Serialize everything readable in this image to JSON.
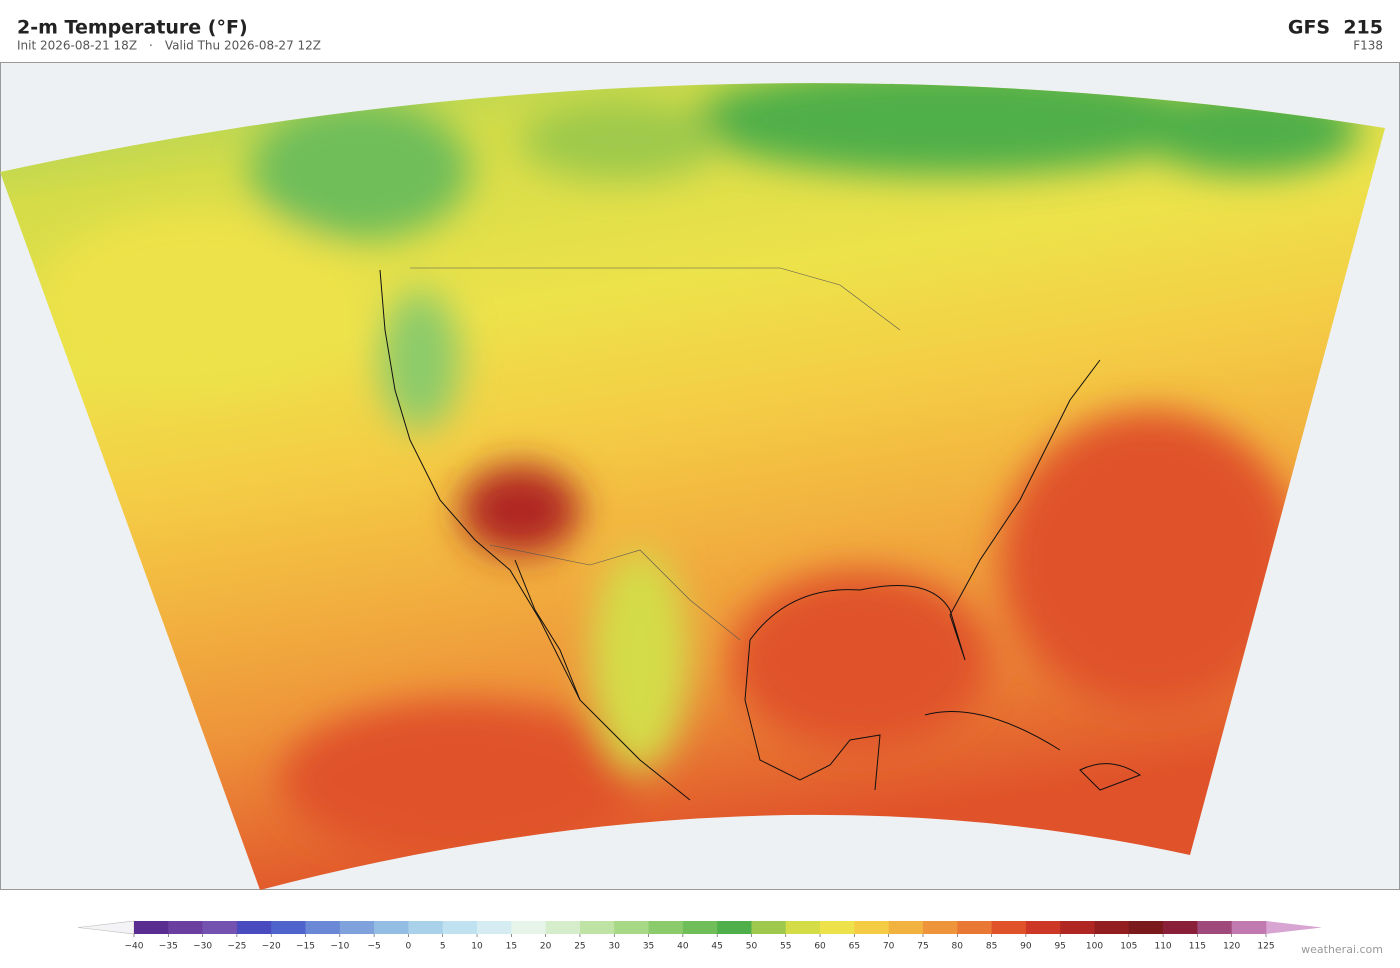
{
  "header": {
    "title": "2-m Temperature  (°F)",
    "init": "Init 2026-08-21 18Z",
    "separator": "·",
    "valid": "Valid Thu 2026-08-27 12Z",
    "model": "GFS  215",
    "forecast_hour": "F138"
  },
  "colorbar": {
    "ticks": [
      {
        "value": -40,
        "label": "−40"
      },
      {
        "value": -35,
        "label": "−35"
      },
      {
        "value": -30,
        "label": "−30"
      },
      {
        "value": -25,
        "label": "−25"
      },
      {
        "value": -20,
        "label": "−20"
      },
      {
        "value": -15,
        "label": "−15"
      },
      {
        "value": -10,
        "label": "−10"
      },
      {
        "value": -5,
        "label": "−5"
      },
      0,
      5,
      10,
      15,
      20,
      25,
      30,
      35,
      40,
      45,
      50,
      55,
      60,
      65,
      70,
      75,
      80,
      85,
      90,
      95,
      100,
      105,
      110,
      115,
      120,
      125
    ],
    "colors": [
      "#5a2d91",
      "#6a3fa0",
      "#7452b0",
      "#4b4bc0",
      "#4f63cc",
      "#6b88d6",
      "#7fa2dc",
      "#93bde3",
      "#a9d1ea",
      "#c0e1ef",
      "#d5edf2",
      "#e6f4ea",
      "#d6edcc",
      "#bfe3a5",
      "#a6d886",
      "#8ccb6b",
      "#6fbe5a",
      "#4faf4a",
      "#9ec94c",
      "#d4dc48",
      "#ede24a",
      "#f4cd45",
      "#f2b23f",
      "#ee943a",
      "#e97834",
      "#e0522a",
      "#cc3825",
      "#b02622",
      "#921e1f",
      "#7a1a1d",
      "#8a1f3a",
      "#a04a7c",
      "#c07ab0"
    ],
    "under_color": "#f4f4f6",
    "over_color": "#d8a4d2"
  },
  "footer": {
    "credit": "weatherai.com"
  }
}
